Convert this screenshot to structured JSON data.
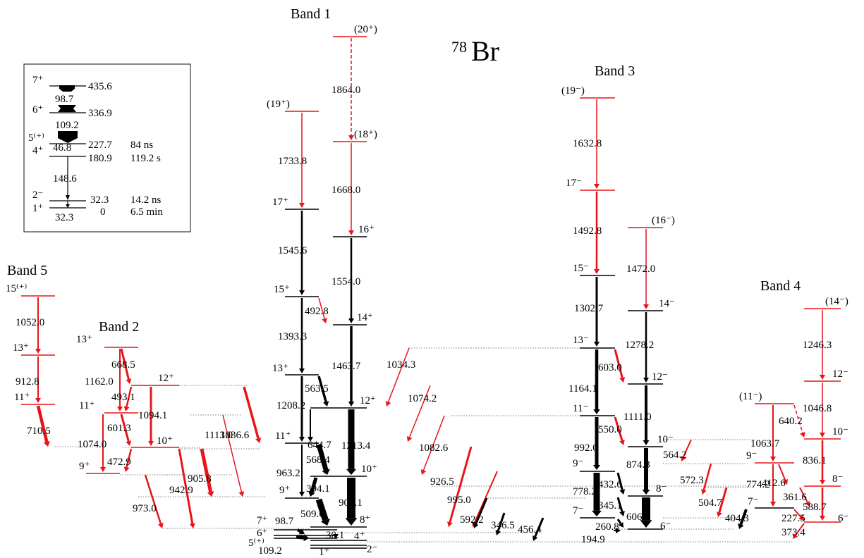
{
  "title": {
    "mass_number": "78",
    "element": "Br"
  },
  "colors": {
    "black": "#000000",
    "red": "#e8141a",
    "link": "#555555"
  },
  "bands": [
    {
      "name": "Band 1"
    },
    {
      "name": "Band 2"
    },
    {
      "name": "Band 3"
    },
    {
      "name": "Band 4"
    },
    {
      "name": "Band 5"
    }
  ],
  "levels": [
    {
      "spin": "(20⁺)",
      "color": "red"
    },
    {
      "spin": "(19⁺)",
      "color": "red"
    },
    {
      "spin": "(18⁺)",
      "color": "red"
    },
    {
      "spin": "17⁺",
      "color": "black"
    },
    {
      "spin": "16⁺",
      "color": "black"
    },
    {
      "spin": "15⁺",
      "color": "black"
    },
    {
      "spin": "14⁺",
      "color": "black"
    },
    {
      "spin": "13⁺",
      "color": "black"
    },
    {
      "spin": "12⁺",
      "color": "black"
    },
    {
      "spin": "11⁺",
      "color": "black"
    },
    {
      "spin": "10⁺",
      "color": "black"
    },
    {
      "spin": "9⁺",
      "color": "black"
    },
    {
      "spin": "8⁺",
      "color": "black"
    },
    {
      "spin": "7⁺",
      "color": "black"
    },
    {
      "spin": "6⁺",
      "color": "black"
    },
    {
      "spin": "5⁽⁺⁾",
      "color": "black"
    },
    {
      "spin": "4⁺",
      "color": "black"
    },
    {
      "spin": "1⁺",
      "color": "black"
    },
    {
      "spin": "2⁻",
      "color": "black"
    },
    {
      "spin": "13⁺",
      "color": "red"
    },
    {
      "spin": "12⁺",
      "color": "red"
    },
    {
      "spin": "11⁺",
      "color": "red"
    },
    {
      "spin": "10⁺",
      "color": "red"
    },
    {
      "spin": "9⁺",
      "color": "red"
    },
    {
      "spin": "(19⁻)",
      "color": "red"
    },
    {
      "spin": "17⁻",
      "color": "red"
    },
    {
      "spin": "(16⁻)",
      "color": "red"
    },
    {
      "spin": "15⁻",
      "color": "black"
    },
    {
      "spin": "14⁻",
      "color": "black"
    },
    {
      "spin": "13⁻",
      "color": "black"
    },
    {
      "spin": "12⁻",
      "color": "black"
    },
    {
      "spin": "11⁻",
      "color": "black"
    },
    {
      "spin": "10⁻",
      "color": "black"
    },
    {
      "spin": "9⁻",
      "color": "black"
    },
    {
      "spin": "8⁻",
      "color": "black"
    },
    {
      "spin": "7⁻",
      "color": "black"
    },
    {
      "spin": "6⁻",
      "color": "black"
    },
    {
      "spin": "(14⁻)",
      "color": "red"
    },
    {
      "spin": "12⁻",
      "color": "red"
    },
    {
      "spin": "(11⁻)",
      "color": "red"
    },
    {
      "spin": "10⁻",
      "color": "red"
    },
    {
      "spin": "9⁻",
      "color": "red"
    },
    {
      "spin": "8⁻",
      "color": "red"
    },
    {
      "spin": "7⁻",
      "color": "black"
    },
    {
      "spin": "6⁻",
      "color": "red"
    },
    {
      "spin": "15⁽⁺⁾",
      "color": "red"
    },
    {
      "spin": "13⁺",
      "color": "red"
    },
    {
      "spin": "11⁺",
      "color": "red"
    },
    {
      "spin": "9⁺",
      "color": "red"
    }
  ],
  "transitions": [
    {
      "energy": "1864.0",
      "color": "red",
      "dashed": true
    },
    {
      "energy": "1668.0",
      "color": "red"
    },
    {
      "energy": "1733.8",
      "color": "red"
    },
    {
      "energy": "1545.6",
      "color": "black"
    },
    {
      "energy": "1554.0",
      "color": "black"
    },
    {
      "energy": "492.8",
      "color": "red"
    },
    {
      "energy": "1393.3",
      "color": "black"
    },
    {
      "energy": "1463.7",
      "color": "black"
    },
    {
      "energy": "563.5",
      "color": "black"
    },
    {
      "energy": "1208.2",
      "color": "black"
    },
    {
      "energy": "644.7",
      "color": "black"
    },
    {
      "energy": "1213.4",
      "color": "black"
    },
    {
      "energy": "568.4",
      "color": "black"
    },
    {
      "energy": "963.2",
      "color": "black"
    },
    {
      "energy": "394.1",
      "color": "black"
    },
    {
      "energy": "904.1",
      "color": "black"
    },
    {
      "energy": "509.6",
      "color": "black"
    },
    {
      "energy": "98.7",
      "color": "black"
    },
    {
      "energy": "30.1",
      "color": "black"
    },
    {
      "energy": "109.2",
      "color": "black"
    },
    {
      "energy": "668.5",
      "color": "red"
    },
    {
      "energy": "1162.0",
      "color": "red"
    },
    {
      "energy": "493.1",
      "color": "red"
    },
    {
      "energy": "1094.1",
      "color": "red"
    },
    {
      "energy": "601.3",
      "color": "red"
    },
    {
      "energy": "1074.0",
      "color": "red"
    },
    {
      "energy": "472.9",
      "color": "red"
    },
    {
      "energy": "973.0",
      "color": "red"
    },
    {
      "energy": "942.9",
      "color": "red"
    },
    {
      "energy": "905.8",
      "color": "red"
    },
    {
      "energy": "1113.0",
      "color": "red"
    },
    {
      "energy": "1036.6",
      "color": "red"
    },
    {
      "energy": "1034.3",
      "color": "red"
    },
    {
      "energy": "1074.2",
      "color": "red"
    },
    {
      "energy": "1082.6",
      "color": "red"
    },
    {
      "energy": "926.5",
      "color": "red"
    },
    {
      "energy": "995.0",
      "color": "red"
    },
    {
      "energy": "592.2",
      "color": "black"
    },
    {
      "energy": "346.5",
      "color": "black"
    },
    {
      "energy": "456.4",
      "color": "black"
    },
    {
      "energy": "1632.8",
      "color": "red"
    },
    {
      "energy": "1492.8",
      "color": "red"
    },
    {
      "energy": "1472.0",
      "color": "red"
    },
    {
      "energy": "1302.7",
      "color": "black"
    },
    {
      "energy": "1278.2",
      "color": "black"
    },
    {
      "energy": "603.0",
      "color": "red"
    },
    {
      "energy": "1164.1",
      "color": "black"
    },
    {
      "energy": "1111.0",
      "color": "black"
    },
    {
      "energy": "550.0",
      "color": "red"
    },
    {
      "energy": "992.0",
      "color": "black"
    },
    {
      "energy": "874.3",
      "color": "black"
    },
    {
      "energy": "432.6",
      "color": "black"
    },
    {
      "energy": "778.2",
      "color": "black"
    },
    {
      "energy": "345.1",
      "color": "black"
    },
    {
      "energy": "606.2",
      "color": "black"
    },
    {
      "energy": "260.8",
      "color": "black"
    },
    {
      "energy": "194.9",
      "color": "black"
    },
    {
      "energy": "1246.3",
      "color": "red"
    },
    {
      "energy": "1046.8",
      "color": "red"
    },
    {
      "energy": "640.2",
      "color": "red",
      "dashed": true
    },
    {
      "energy": "1063.7",
      "color": "red"
    },
    {
      "energy": "836.1",
      "color": "red"
    },
    {
      "energy": "564.2",
      "color": "red"
    },
    {
      "energy": "412.6",
      "color": "red"
    },
    {
      "energy": "572.3",
      "color": "red"
    },
    {
      "energy": "774.2",
      "color": "red"
    },
    {
      "energy": "361.6",
      "color": "red"
    },
    {
      "energy": "504.7",
      "color": "red"
    },
    {
      "energy": "588.7",
      "color": "red"
    },
    {
      "energy": "227.5",
      "color": "red"
    },
    {
      "energy": "404.3",
      "color": "black"
    },
    {
      "energy": "373.4",
      "color": "red"
    },
    {
      "energy": "1052.0",
      "color": "red"
    },
    {
      "energy": "912.8",
      "color": "red"
    },
    {
      "energy": "710.5",
      "color": "red"
    }
  ],
  "inset": {
    "levels": [
      {
        "spin": "7⁺",
        "energy": "435.6",
        "halflife": ""
      },
      {
        "spin": "6⁺",
        "energy": "336.9",
        "halflife": ""
      },
      {
        "spin": "5⁽⁺⁾",
        "energy": "227.7",
        "halflife": "84 ns"
      },
      {
        "spin": "4⁺",
        "energy": "180.9",
        "halflife": "119.2   s"
      },
      {
        "spin": "2⁻",
        "energy": "32.3",
        "halflife": "14.2 ns"
      },
      {
        "spin": "1⁺",
        "energy": "0",
        "halflife": "6.5 min"
      }
    ],
    "transitions": [
      {
        "energy": "98.7"
      },
      {
        "energy": "109.2"
      },
      {
        "energy": "46.8"
      },
      {
        "energy": "148.6"
      },
      {
        "energy": "32.3"
      }
    ]
  }
}
